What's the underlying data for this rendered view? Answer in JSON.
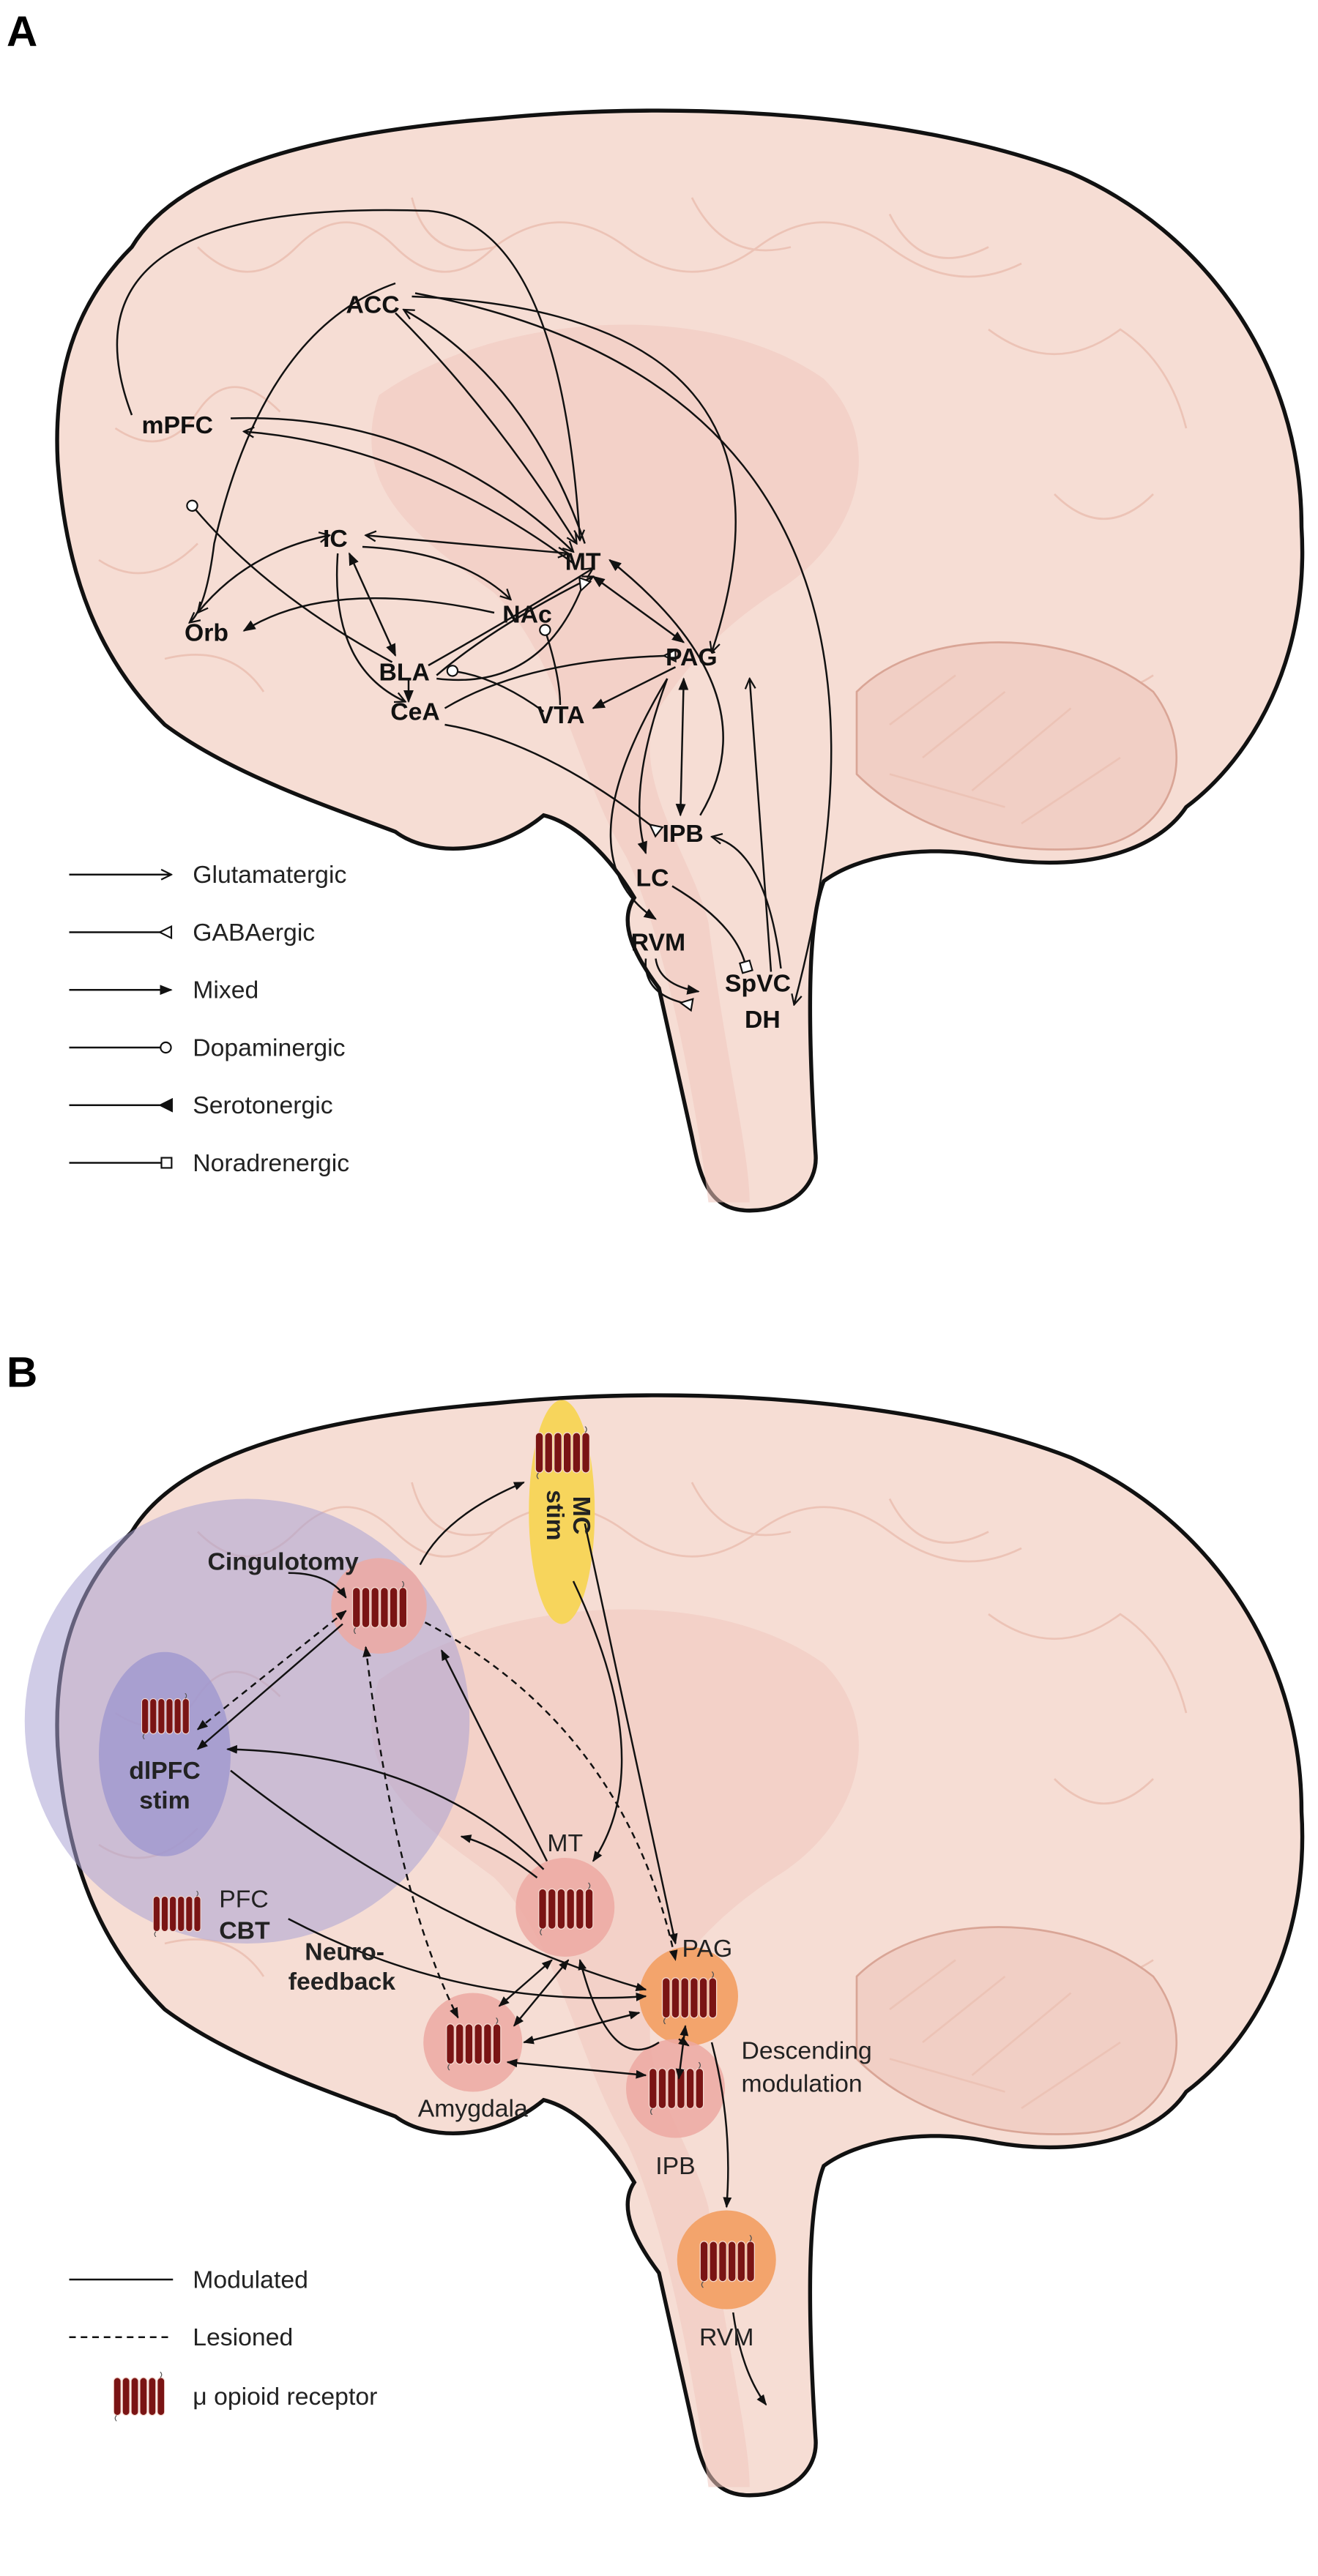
{
  "colors": {
    "brain_fill": "#f6ddd4",
    "outline": "#111111",
    "stim_region": "#a9a3d3",
    "mc_stim": "#f7d55c",
    "receptor_circle": "#eca9a2",
    "pag_rvm_circle": "#f3a46c",
    "receptor": "#7a1414"
  },
  "panel_a": {
    "label": "A",
    "nodes": {
      "acc": "ACC",
      "mpfc": "mPFC",
      "ic": "IC",
      "mt": "MT",
      "orb": "Orb",
      "nac": "NAc",
      "bla": "BLA",
      "pag": "PAG",
      "cea": "CeA",
      "vta": "VTA",
      "ipb": "IPB",
      "lc": "LC",
      "rvm": "RVM",
      "spvc": "SpVC",
      "dh": "DH"
    },
    "legend": [
      {
        "label": "Glutamatergic",
        "marker": "open-arrow"
      },
      {
        "label": "GABAergic",
        "marker": "open-triangle"
      },
      {
        "label": "Mixed",
        "marker": "filled-arrow"
      },
      {
        "label": "Dopaminergic",
        "marker": "open-circle"
      },
      {
        "label": "Serotonergic",
        "marker": "filled-triangle-reverse"
      },
      {
        "label": "Noradrenergic",
        "marker": "open-square"
      }
    ]
  },
  "panel_b": {
    "label": "B",
    "labels": {
      "cingulotomy": "Cingulotomy",
      "mc_stim_1": "MC",
      "mc_stim_2": "stim",
      "dlpfc_1": "dlPFC",
      "dlpfc_2": "stim",
      "pfc": "PFC",
      "cbt": "CBT",
      "neuro_1": "Neuro-",
      "neuro_2": "feedback",
      "mt": "MT",
      "pag": "PAG",
      "amygdala": "Amygdala",
      "ipb": "IPB",
      "rvm": "RVM",
      "desc_1": "Descending",
      "desc_2": "modulation"
    },
    "legend": [
      {
        "label": "Modulated",
        "style": "solid"
      },
      {
        "label": "Lesioned",
        "style": "dashed"
      },
      {
        "label": "μ opioid receptor",
        "style": "receptor-icon"
      }
    ]
  }
}
